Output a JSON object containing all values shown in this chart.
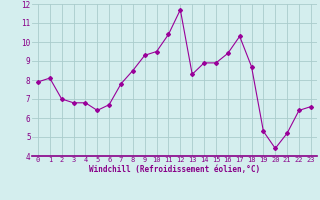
{
  "x": [
    0,
    1,
    2,
    3,
    4,
    5,
    6,
    7,
    8,
    9,
    10,
    11,
    12,
    13,
    14,
    15,
    16,
    17,
    18,
    19,
    20,
    21,
    22,
    23
  ],
  "y": [
    7.9,
    8.1,
    7.0,
    6.8,
    6.8,
    6.4,
    6.7,
    7.8,
    8.5,
    9.3,
    9.5,
    10.4,
    11.7,
    8.3,
    8.9,
    8.9,
    9.4,
    10.3,
    8.7,
    5.3,
    4.4,
    5.2,
    6.4,
    6.6
  ],
  "line_color": "#990099",
  "marker": "D",
  "marker_size": 2,
  "bg_color": "#d4eeee",
  "grid_color": "#aacccc",
  "xlabel": "Windchill (Refroidissement éolien,°C)",
  "xlim": [
    -0.5,
    23.5
  ],
  "ylim": [
    4,
    12
  ],
  "yticks": [
    4,
    5,
    6,
    7,
    8,
    9,
    10,
    11,
    12
  ],
  "xticks": [
    0,
    1,
    2,
    3,
    4,
    5,
    6,
    7,
    8,
    9,
    10,
    11,
    12,
    13,
    14,
    15,
    16,
    17,
    18,
    19,
    20,
    21,
    22,
    23
  ],
  "xlabel_color": "#880088",
  "tick_color": "#880088",
  "spine_bottom_color": "#880088",
  "tick_fontsize": 5.0,
  "xlabel_fontsize": 5.5
}
